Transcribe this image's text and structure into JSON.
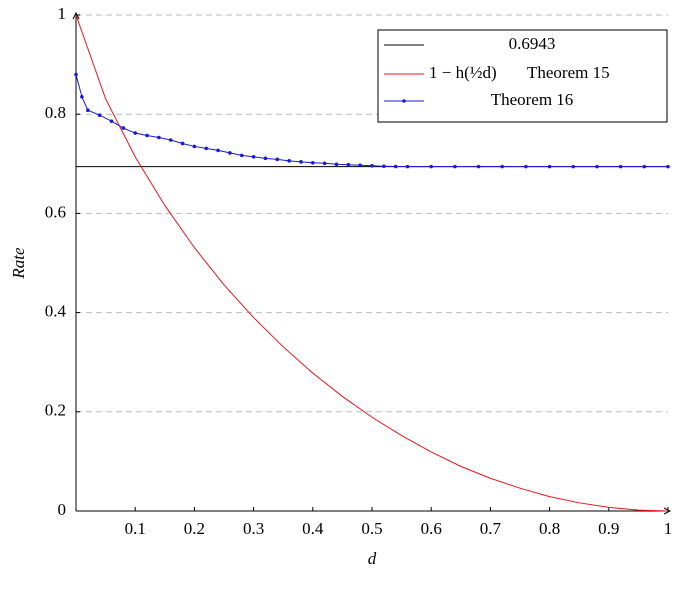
{
  "chart_data": {
    "type": "line",
    "x_label": "d",
    "y_label": "Rate",
    "xlim": [
      0,
      1
    ],
    "ylim": [
      0,
      1
    ],
    "xticks": [
      0.1,
      0.2,
      0.3,
      0.4,
      0.5,
      0.6,
      0.7,
      0.8,
      0.9,
      1
    ],
    "yticks": [
      0,
      0.2,
      0.4,
      0.6,
      0.8,
      1
    ],
    "grid": true,
    "legend": "upper right",
    "series": [
      {
        "name": "0.6943",
        "color": "#000000",
        "markers": false,
        "x": [
          0,
          1
        ],
        "values": [
          0.6943,
          0.6943
        ]
      },
      {
        "name": "1 − h(½d)",
        "note": "Theorem 15",
        "label_color": "#a3222a",
        "color": "#e8141e",
        "markers": false,
        "x": [
          0,
          0.05,
          0.1,
          0.15,
          0.2,
          0.25,
          0.3,
          0.35,
          0.4,
          0.45,
          0.5,
          0.55,
          0.6,
          0.65,
          0.7,
          0.75,
          0.8,
          0.85,
          0.9,
          0.95,
          1
        ],
        "values": [
          1,
          0.831,
          0.714,
          0.616,
          0.531,
          0.456,
          0.39,
          0.331,
          0.278,
          0.231,
          0.189,
          0.152,
          0.119,
          0.09,
          0.066,
          0.046,
          0.029,
          0.0165,
          0.0072,
          0.0018,
          0
        ]
      },
      {
        "name": "Theorem 16",
        "label_color": "#a3222a",
        "color": "#1a1ad6",
        "markers": true,
        "x": [
          0,
          0.01,
          0.02,
          0.04,
          0.06,
          0.08,
          0.1,
          0.12,
          0.14,
          0.16,
          0.18,
          0.2,
          0.22,
          0.24,
          0.26,
          0.28,
          0.3,
          0.32,
          0.34,
          0.36,
          0.38,
          0.4,
          0.42,
          0.44,
          0.46,
          0.48,
          0.5,
          0.52,
          0.54,
          0.56,
          0.6,
          0.64,
          0.68,
          0.72,
          0.76,
          0.8,
          0.84,
          0.88,
          0.92,
          0.96,
          1
        ],
        "values": [
          0.88,
          0.835,
          0.808,
          0.798,
          0.786,
          0.772,
          0.762,
          0.757,
          0.753,
          0.748,
          0.741,
          0.735,
          0.731,
          0.727,
          0.722,
          0.717,
          0.714,
          0.711,
          0.709,
          0.706,
          0.704,
          0.702,
          0.701,
          0.699,
          0.698,
          0.697,
          0.696,
          0.695,
          0.6945,
          0.6943,
          0.6943,
          0.6943,
          0.6943,
          0.6943,
          0.6943,
          0.6943,
          0.6943,
          0.6943,
          0.6943,
          0.6943,
          0.6943
        ]
      }
    ]
  }
}
